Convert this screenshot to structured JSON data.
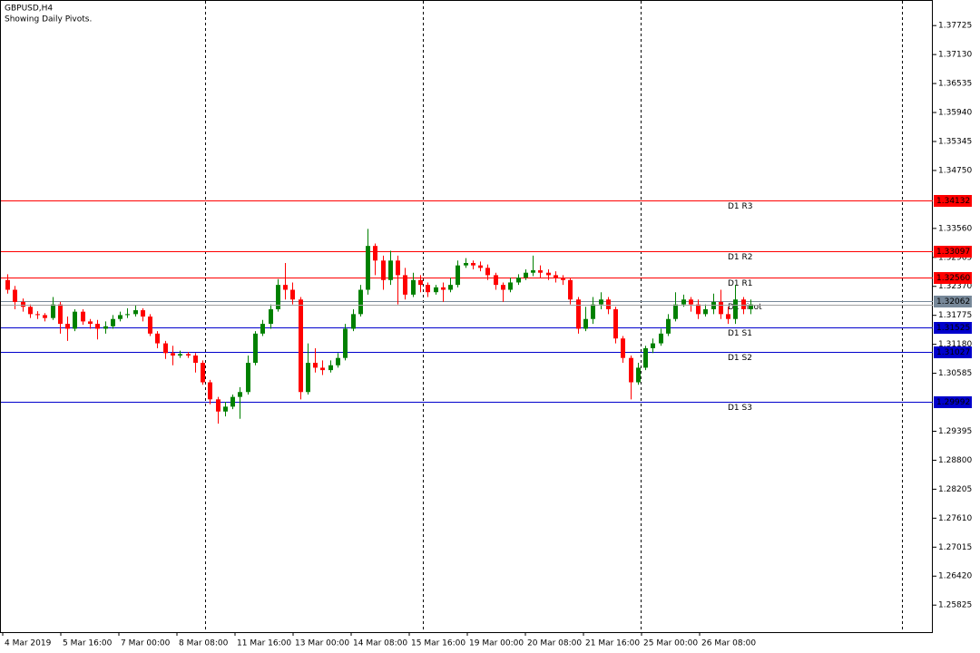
{
  "chart_data": {
    "type": "candlestick",
    "title": "GBPUSD,H4",
    "subtitle": "Showing Daily Pivots.",
    "up_color": "#008000",
    "down_color": "#ff0000",
    "ylim": [
      1.2527,
      1.3825
    ],
    "yticks": [
      1.37725,
      {
        "value": 1.3713,
        "label": "1.37130"
      },
      1.36535,
      {
        "value": 1.3594,
        "label": "1.35940"
      },
      1.35345,
      {
        "value": 1.3475,
        "label": "1.34750"
      },
      {
        "value": 1.3356,
        "label": "1.33560"
      },
      1.32965,
      {
        "value": 1.3237,
        "label": "1.32370"
      },
      1.31775,
      {
        "value": 1.3118,
        "label": "1.31180"
      },
      1.30585,
      1.29395,
      {
        "value": 1.288,
        "label": "1.28800"
      },
      1.28205,
      {
        "value": 1.2761,
        "label": "1.27610"
      },
      1.27015,
      {
        "value": 1.2642,
        "label": "1.26420"
      },
      1.25825
    ],
    "x_labels": [
      "4 Mar 2019",
      "5 Mar 16:00",
      "7 Mar 00:00",
      "8 Mar 08:00",
      "11 Mar 16:00",
      "13 Mar 00:00",
      "14 Mar 08:00",
      "15 Mar 16:00",
      "19 Mar 00:00",
      "20 Mar 08:00",
      "21 Mar 16:00",
      "25 Mar 00:00",
      "26 Mar 08:00"
    ],
    "pivots": [
      {
        "name": "D1 R3",
        "value": 1.34132,
        "color": "#ff0000"
      },
      {
        "name": "D1 R2",
        "value": 1.33097,
        "color": "#ff0000"
      },
      {
        "name": "D1 R1",
        "value": 1.3256,
        "value_label": "1.32560",
        "color": "#ff0000"
      },
      {
        "name": "D1 Pivot",
        "value": 1.32062,
        "color": "#778899"
      },
      {
        "name": "D1 S1",
        "value": 1.31525,
        "color": "#0000cc"
      },
      {
        "name": "D1 S2",
        "value": 1.31027,
        "color": "#0000cc"
      },
      {
        "name": "D1 S3",
        "value": 1.29992,
        "color": "#0000cc"
      }
    ],
    "candles": [
      [
        1.325,
        1.3262,
        1.3222,
        1.323
      ],
      [
        1.323,
        1.3238,
        1.319,
        1.3205
      ],
      [
        1.3205,
        1.3212,
        1.3185,
        1.3195
      ],
      [
        1.3195,
        1.32,
        1.3172,
        1.318
      ],
      [
        1.318,
        1.3186,
        1.317,
        1.3178
      ],
      [
        1.3178,
        1.3182,
        1.3165,
        1.3172
      ],
      [
        1.3172,
        1.3215,
        1.3168,
        1.32
      ],
      [
        1.32,
        1.3205,
        1.314,
        1.316
      ],
      [
        1.316,
        1.3175,
        1.3125,
        1.315
      ],
      [
        1.315,
        1.319,
        1.3145,
        1.3185
      ],
      [
        1.3185,
        1.319,
        1.3158,
        1.3165
      ],
      [
        1.3165,
        1.317,
        1.315,
        1.316
      ],
      [
        1.316,
        1.3168,
        1.3128,
        1.315
      ],
      [
        1.315,
        1.3165,
        1.314,
        1.3155
      ],
      [
        1.3155,
        1.3178,
        1.315,
        1.317
      ],
      [
        1.317,
        1.3185,
        1.3165,
        1.3178
      ],
      [
        1.3178,
        1.3192,
        1.3172,
        1.318
      ],
      [
        1.318,
        1.3198,
        1.3175,
        1.3188
      ],
      [
        1.3188,
        1.3192,
        1.3165,
        1.3175
      ],
      [
        1.3175,
        1.318,
        1.3135,
        1.314
      ],
      [
        1.314,
        1.3145,
        1.311,
        1.312
      ],
      [
        1.312,
        1.3125,
        1.3088,
        1.31
      ],
      [
        1.31,
        1.3115,
        1.3075,
        1.3095
      ],
      [
        1.3095,
        1.3105,
        1.309,
        1.3098
      ],
      [
        1.3098,
        1.3102,
        1.309,
        1.3095
      ],
      [
        1.3095,
        1.31,
        1.306,
        1.308
      ],
      [
        1.308,
        1.3085,
        1.3035,
        1.304
      ],
      [
        1.304,
        1.3045,
        1.2995,
        1.3005
      ],
      [
        1.3005,
        1.301,
        1.2955,
        1.298
      ],
      [
        1.298,
        1.3,
        1.297,
        1.299
      ],
      [
        1.299,
        1.3015,
        1.2985,
        1.301
      ],
      [
        1.301,
        1.303,
        1.2965,
        1.302
      ],
      [
        1.302,
        1.3095,
        1.3015,
        1.308
      ],
      [
        1.308,
        1.3145,
        1.3075,
        1.314
      ],
      [
        1.314,
        1.3168,
        1.3135,
        1.316
      ],
      [
        1.316,
        1.32,
        1.315,
        1.319
      ],
      [
        1.319,
        1.3252,
        1.3185,
        1.324
      ],
      [
        1.324,
        1.3285,
        1.321,
        1.323
      ],
      [
        1.323,
        1.3245,
        1.32,
        1.321
      ],
      [
        1.321,
        1.3215,
        1.3005,
        1.302
      ],
      [
        1.302,
        1.312,
        1.3015,
        1.308
      ],
      [
        1.308,
        1.311,
        1.306,
        1.307
      ],
      [
        1.307,
        1.3085,
        1.3055,
        1.3065
      ],
      [
        1.3065,
        1.3085,
        1.306,
        1.3075
      ],
      [
        1.3075,
        1.31,
        1.307,
        1.309
      ],
      [
        1.309,
        1.316,
        1.3085,
        1.315
      ],
      [
        1.315,
        1.319,
        1.3145,
        1.318
      ],
      [
        1.318,
        1.324,
        1.3175,
        1.323
      ],
      [
        1.323,
        1.3355,
        1.322,
        1.332
      ],
      [
        1.332,
        1.3325,
        1.326,
        1.329
      ],
      [
        1.329,
        1.33,
        1.323,
        1.325
      ],
      [
        1.325,
        1.331,
        1.324,
        1.329
      ],
      [
        1.329,
        1.33,
        1.32,
        1.326
      ],
      [
        1.326,
        1.3275,
        1.321,
        1.322
      ],
      [
        1.322,
        1.3265,
        1.3215,
        1.325
      ],
      [
        1.325,
        1.326,
        1.3225,
        1.324
      ],
      [
        1.324,
        1.3245,
        1.3215,
        1.3225
      ],
      [
        1.3225,
        1.324,
        1.322,
        1.3235
      ],
      [
        1.3235,
        1.3245,
        1.3205,
        1.323
      ],
      [
        1.323,
        1.3255,
        1.3225,
        1.324
      ],
      [
        1.324,
        1.329,
        1.3235,
        1.328
      ],
      [
        1.328,
        1.3295,
        1.3275,
        1.3285
      ],
      [
        1.3285,
        1.329,
        1.3272,
        1.328
      ],
      [
        1.328,
        1.3288,
        1.3268,
        1.3275
      ],
      [
        1.3275,
        1.3282,
        1.325,
        1.326
      ],
      [
        1.326,
        1.3265,
        1.323,
        1.324
      ],
      [
        1.324,
        1.3245,
        1.3205,
        1.323
      ],
      [
        1.323,
        1.3255,
        1.3225,
        1.3245
      ],
      [
        1.3245,
        1.3262,
        1.324,
        1.3255
      ],
      [
        1.3255,
        1.3272,
        1.325,
        1.3265
      ],
      [
        1.3265,
        1.33,
        1.3258,
        1.327
      ],
      [
        1.327,
        1.328,
        1.3255,
        1.3265
      ],
      [
        1.3265,
        1.3272,
        1.325,
        1.326
      ],
      [
        1.326,
        1.3268,
        1.3245,
        1.3255
      ],
      [
        1.3255,
        1.326,
        1.324,
        1.325
      ],
      [
        1.325,
        1.3255,
        1.32,
        1.321
      ],
      [
        1.321,
        1.3215,
        1.314,
        1.315
      ],
      [
        1.315,
        1.3195,
        1.3145,
        1.317
      ],
      [
        1.317,
        1.3215,
        1.316,
        1.32
      ],
      [
        1.32,
        1.3225,
        1.319,
        1.321
      ],
      [
        1.321,
        1.3215,
        1.318,
        1.319
      ],
      [
        1.319,
        1.3195,
        1.312,
        1.313
      ],
      [
        1.313,
        1.3135,
        1.308,
        1.309
      ],
      [
        1.309,
        1.3095,
        1.3005,
        1.304
      ],
      [
        1.304,
        1.308,
        1.3035,
        1.307
      ],
      [
        1.307,
        1.3115,
        1.3065,
        1.311
      ],
      [
        1.311,
        1.313,
        1.31,
        1.312
      ],
      [
        1.312,
        1.315,
        1.3115,
        1.314
      ],
      [
        1.314,
        1.318,
        1.3135,
        1.317
      ],
      [
        1.317,
        1.3225,
        1.3165,
        1.32
      ],
      [
        1.32,
        1.322,
        1.3195,
        1.321
      ],
      [
        1.321,
        1.3215,
        1.3185,
        1.32
      ],
      [
        1.32,
        1.321,
        1.317,
        1.318
      ],
      [
        1.318,
        1.32,
        1.3175,
        1.319
      ],
      [
        1.319,
        1.3222,
        1.318,
        1.3205
      ],
      [
        1.3205,
        1.323,
        1.317,
        1.318
      ],
      [
        1.318,
        1.3195,
        1.316,
        1.317
      ],
      [
        1.317,
        1.324,
        1.316,
        1.321
      ],
      [
        1.321,
        1.3215,
        1.318,
        1.319
      ],
      [
        1.319,
        1.321,
        1.318,
        1.32
      ]
    ]
  }
}
